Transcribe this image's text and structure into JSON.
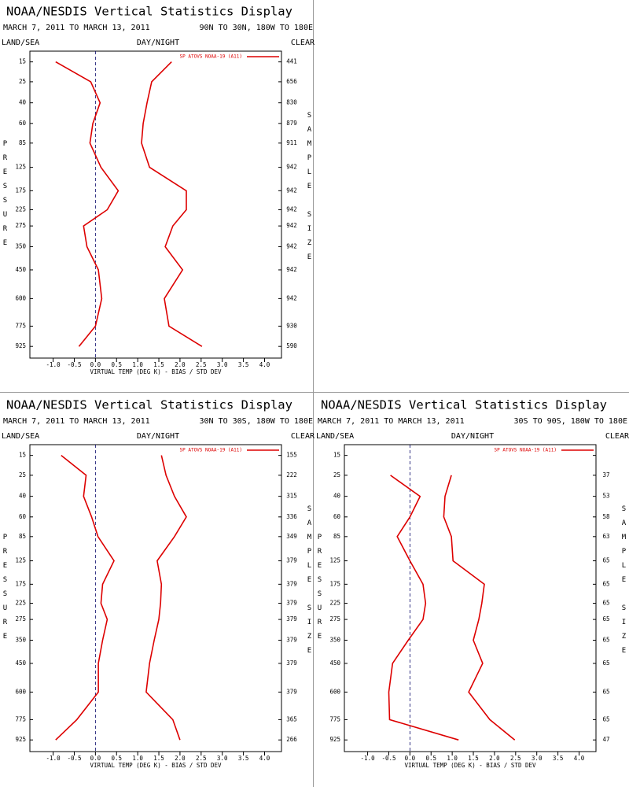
{
  "chart_data": [
    {
      "type": "line",
      "title": "NOAA/NESDIS Vertical Statistics Display",
      "subtitle": "MARCH 7, 2011 TO MARCH 13, 2011",
      "region": "90N TO 30N, 180W TO 180E",
      "left_label": "LAND/SEA",
      "center_label": "DAY/NIGHT",
      "right_label": "CLEAR",
      "legend_label": "SP ATOVS NOAA-19 (A11)",
      "ylabel": "PRESSURE",
      "y2label": "SAMPLE SIZE",
      "xlabel": "VIRTUAL TEMP (DEG K) - BIAS / STD DEV",
      "y": [
        15,
        25,
        40,
        60,
        85,
        125,
        175,
        225,
        275,
        350,
        450,
        600,
        775,
        925
      ],
      "series": [
        {
          "color": "#dd0000",
          "values": [
            -0.94,
            -0.11,
            0.11,
            -0.06,
            -0.13,
            0.13,
            0.54,
            0.28,
            -0.28,
            -0.2,
            0.07,
            0.15,
            0,
            -0.39
          ]
        },
        {
          "color": "#dd0000",
          "values": [
            1.8,
            1.33,
            1.22,
            1.13,
            1.09,
            1.28,
            2.15,
            2.15,
            1.83,
            1.65,
            2.06,
            1.63,
            1.74,
            2.52
          ]
        }
      ],
      "sample_size": [
        441,
        656,
        830,
        879,
        911,
        942,
        942,
        942,
        942,
        942,
        942,
        942,
        930,
        590
      ],
      "xlim": [
        -1.55,
        4.4
      ],
      "xticks": [
        {
          "value": -1,
          "label": "-1.0"
        },
        -0.5,
        {
          "value": 0,
          "label": "0.0"
        },
        0.5,
        {
          "value": 1,
          "label": "1.0"
        },
        1.5,
        {
          "value": 2,
          "label": "2.0"
        },
        2.5,
        {
          "value": 3,
          "label": "3.0"
        },
        3.5,
        {
          "value": 4,
          "label": "4.0"
        }
      ],
      "ylim": [
        11,
        1020
      ],
      "yexponent": 0.286,
      "yinvert": true,
      "yticks": [
        15,
        25,
        40,
        60,
        85,
        125,
        175,
        225,
        275,
        350,
        450,
        600,
        775,
        925
      ]
    },
    {
      "type": "line",
      "title": "NOAA/NESDIS Vertical Statistics Display",
      "subtitle": "MARCH 7, 2011 TO MARCH 13, 2011",
      "region": "30N TO 30S, 180W TO 180E",
      "left_label": "LAND/SEA",
      "center_label": "DAY/NIGHT",
      "right_label": "CLEAR",
      "legend_label": "SP ATOVS NOAA-19 (A11)",
      "ylabel": "PRESSURE",
      "y2label": "SAMPLE SIZE",
      "xlabel": "VIRTUAL TEMP (DEG K) - BIAS / STD DEV",
      "y": [
        15,
        25,
        40,
        60,
        85,
        125,
        175,
        225,
        275,
        350,
        450,
        600,
        775,
        925
      ],
      "series": [
        {
          "color": "#dd0000",
          "values": [
            -0.81,
            -0.22,
            -0.28,
            -0.09,
            0.06,
            0.44,
            0.17,
            0.13,
            0.28,
            0.17,
            0.07,
            0.07,
            -0.44,
            -0.94
          ]
        },
        {
          "color": "#dd0000",
          "values": [
            1.56,
            1.67,
            1.87,
            2.15,
            1.87,
            1.46,
            1.56,
            1.54,
            1.5,
            1.39,
            1.28,
            1.2,
            1.83,
            2.0
          ]
        }
      ],
      "sample_size": [
        155,
        222,
        315,
        336,
        349,
        379,
        379,
        379,
        379,
        379,
        379,
        379,
        365,
        266
      ],
      "xlim": [
        -1.55,
        4.4
      ],
      "xticks": [
        {
          "value": -1,
          "label": "-1.0"
        },
        -0.5,
        {
          "value": 0,
          "label": "0.0"
        },
        0.5,
        {
          "value": 1,
          "label": "1.0"
        },
        1.5,
        {
          "value": 2,
          "label": "2.0"
        },
        2.5,
        {
          "value": 3,
          "label": "3.0"
        },
        3.5,
        {
          "value": 4,
          "label": "4.0"
        }
      ],
      "ylim": [
        11,
        1020
      ],
      "yexponent": 0.286,
      "yinvert": true,
      "yticks": [
        15,
        25,
        40,
        60,
        85,
        125,
        175,
        225,
        275,
        350,
        450,
        600,
        775,
        925
      ]
    },
    {
      "type": "line",
      "title": "NOAA/NESDIS Vertical Statistics Display",
      "subtitle": "MARCH 7, 2011 TO MARCH 13, 2011",
      "region": "30S TO 90S, 180W TO 180E",
      "left_label": "LAND/SEA",
      "center_label": "DAY/NIGHT",
      "right_label": "CLEAR",
      "legend_label": "SP ATOVS NOAA-19 (A11)",
      "ylabel": "PRESSURE",
      "y2label": "SAMPLE SIZE",
      "xlabel": "VIRTUAL TEMP (DEG K) - BIAS / STD DEV",
      "y": [
        15,
        25,
        40,
        60,
        85,
        125,
        175,
        225,
        275,
        350,
        450,
        600,
        775,
        925
      ],
      "series": [
        {
          "color": "#dd0000",
          "values": [
            null,
            -0.46,
            0.24,
            0,
            -0.3,
            0,
            0.31,
            0.37,
            0.31,
            -0.04,
            -0.41,
            -0.5,
            -0.48,
            1.15
          ]
        },
        {
          "color": "#dd0000",
          "values": [
            null,
            0.98,
            0.83,
            0.8,
            0.98,
            1.02,
            1.76,
            1.7,
            1.63,
            1.5,
            1.72,
            1.39,
            1.89,
            2.48
          ]
        }
      ],
      "sample_size": [
        null,
        37,
        53,
        58,
        63,
        65,
        65,
        65,
        65,
        65,
        65,
        65,
        65,
        47
      ],
      "xlim": [
        -1.55,
        4.4
      ],
      "xticks": [
        {
          "value": -1,
          "label": "-1.0"
        },
        -0.5,
        {
          "value": 0,
          "label": "0.0"
        },
        0.5,
        {
          "value": 1,
          "label": "1.0"
        },
        1.5,
        {
          "value": 2,
          "label": "2.0"
        },
        2.5,
        {
          "value": 3,
          "label": "3.0"
        },
        3.5,
        {
          "value": 4,
          "label": "4.0"
        }
      ],
      "ylim": [
        11,
        1020
      ],
      "yexponent": 0.286,
      "yinvert": true,
      "yticks": [
        15,
        25,
        40,
        60,
        85,
        125,
        175,
        225,
        275,
        350,
        450,
        600,
        775,
        925
      ]
    }
  ]
}
